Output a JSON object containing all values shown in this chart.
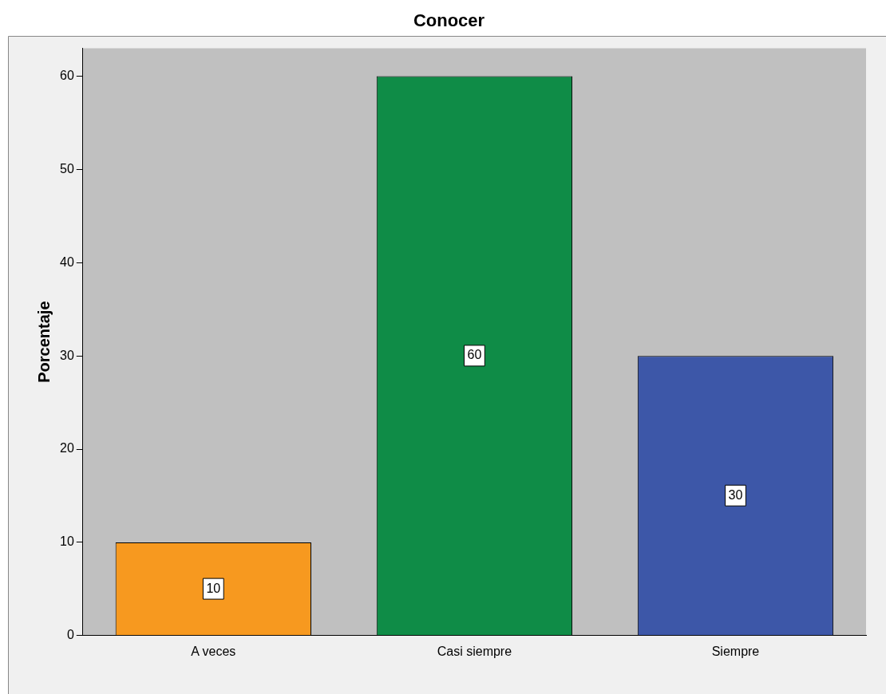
{
  "chart_data": {
    "type": "bar",
    "title": "Conocer",
    "ylabel": "Porcentaje",
    "categories": [
      "A veces",
      "Casi siempre",
      "Siempre"
    ],
    "values": [
      10,
      60,
      30
    ],
    "colors": [
      "#f7991f",
      "#0f8c47",
      "#3d57a8"
    ],
    "ylim": [
      0,
      63
    ],
    "yticks": [
      0,
      10,
      20,
      30,
      40,
      50,
      60
    ],
    "grid": false,
    "legend": false,
    "data_labels": true
  }
}
